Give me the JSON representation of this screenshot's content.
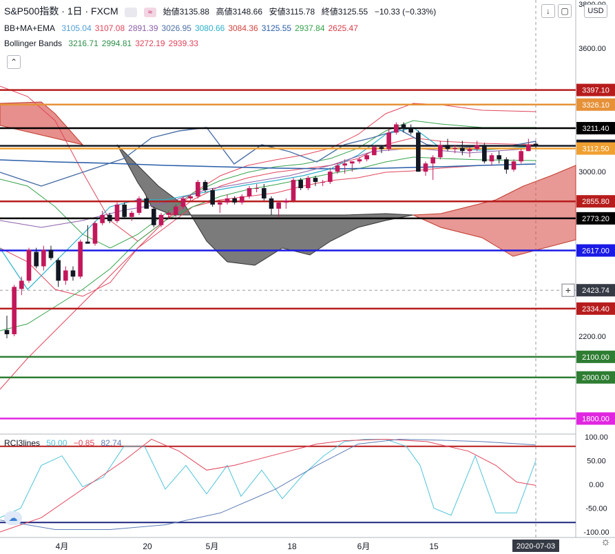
{
  "header": {
    "symbol": "S&P500指数 · 1日 · FXCM",
    "ohlc": {
      "open_label": "始値",
      "open": "3135.88",
      "high_label": "高値",
      "high": "3148.66",
      "low_label": "安値",
      "low": "3115.78",
      "close_label": "終値",
      "close": "3125.55",
      "change": "−10.33 (−0.33%)"
    },
    "indicators": [
      {
        "name": "BB+MA+EMA",
        "values": [
          "3105.04",
          "3107.08",
          "2891.39",
          "3026.95",
          "3080.66",
          "3084.36",
          "3125.55",
          "2937.84",
          "2625.47"
        ],
        "colors": [
          "#4f9fd6",
          "#e0445a",
          "#8b5ea8",
          "#4a6fa5",
          "#2ab0c9",
          "#d0443f",
          "#2a5ea8",
          "#35a24a",
          "#d83a45"
        ]
      },
      {
        "name": "Bollinger Bands",
        "values": [
          "3216.71",
          "2994.81",
          "3272.19",
          "2939.33"
        ],
        "colors": [
          "#2f8f4a",
          "#2f8f4a",
          "#e0445a",
          "#e0445a"
        ]
      }
    ],
    "collapse_icon": "chevron-up-icon",
    "currency": "USD",
    "colors": {
      "up": "#c2185b",
      "down": "#131722"
    }
  },
  "price_axis": {
    "ticks": [
      "3600.00",
      "3400.00",
      "3200.00",
      "3000.00",
      "2800.00",
      "2600.00",
      "2400.00",
      "2200.00",
      "2000.00",
      "1800.00"
    ],
    "ticks_shown": [
      "3600.00",
      "3000.00",
      "2200.00"
    ],
    "top_partial": "3800.00"
  },
  "hlines": [
    {
      "value": 3397.1,
      "label": "3397.10",
      "color": "#b71c1c"
    },
    {
      "value": 3326.1,
      "label": "3326.10",
      "color": "#e69138"
    },
    {
      "value": 3211.4,
      "label": "3211.40",
      "color": "#000000"
    },
    {
      "value": 3125.55,
      "label": "3125.55",
      "color": "#131722"
    },
    {
      "value": 3112.5,
      "label": "3112.50",
      "color": "#f0a030"
    },
    {
      "value": 2855.8,
      "label": "2855.80",
      "color": "#b71c1c"
    },
    {
      "value": 2773.2,
      "label": "2773.20",
      "color": "#000000"
    },
    {
      "value": 2617.0,
      "label": "2617.00",
      "color": "#1a1ae6"
    },
    {
      "value": 2334.4,
      "label": "2334.40",
      "color": "#b71c1c"
    },
    {
      "value": 2100.0,
      "label": "2100.00",
      "color": "#2e7d32"
    },
    {
      "value": 2000.0,
      "label": "2000.00",
      "color": "#2e7d32"
    },
    {
      "value": 1800.0,
      "label": "1800.00",
      "color": "#e026e0"
    }
  ],
  "crosshair": {
    "price": "2423.74",
    "date": "2020-07-03"
  },
  "x_axis": {
    "labels": [
      "4月",
      "20",
      "5月",
      "18",
      "6月",
      "15"
    ]
  },
  "rci": {
    "title": "RCI3lines",
    "values": [
      "50.00",
      "−0.85",
      "82.74"
    ],
    "colors": [
      "#4fc3d9",
      "#e0445a",
      "#5b7bb5"
    ],
    "axis": [
      "100.00",
      "50.00",
      "0.00",
      "-50.00",
      "-100.00"
    ],
    "levels": [
      80,
      -80
    ]
  },
  "chart_data": {
    "type": "candlestick",
    "title": "S&P500指数, 1日, FXCM",
    "ylim": [
      1800,
      3850
    ],
    "dates": [
      "03-23",
      "03-24",
      "03-25",
      "03-26",
      "03-27",
      "03-30",
      "03-31",
      "04-01",
      "04-02",
      "04-03",
      "04-06",
      "04-07",
      "04-08",
      "04-09",
      "04-13",
      "04-14",
      "04-15",
      "04-16",
      "04-17",
      "04-20",
      "04-21",
      "04-22",
      "04-23",
      "04-24",
      "04-27",
      "04-28",
      "04-29",
      "04-30",
      "05-01",
      "05-04",
      "05-05",
      "05-06",
      "05-07",
      "05-08",
      "05-11",
      "05-12",
      "05-13",
      "05-14",
      "05-15",
      "05-18",
      "05-19",
      "05-20",
      "05-21",
      "05-22",
      "05-26",
      "05-27",
      "05-28",
      "05-29",
      "06-01",
      "06-02",
      "06-03",
      "06-04",
      "06-05",
      "06-08",
      "06-09",
      "06-10",
      "06-11",
      "06-12",
      "06-15",
      "06-16",
      "06-17",
      "06-18",
      "06-19",
      "06-22",
      "06-23",
      "06-24",
      "06-25",
      "06-26",
      "06-29",
      "06-30",
      "07-01",
      "07-02",
      "07-03"
    ],
    "ohlc": [
      [
        2230,
        2300,
        2190,
        2210
      ],
      [
        2210,
        2450,
        2200,
        2440
      ],
      [
        2430,
        2490,
        2400,
        2470
      ],
      [
        2470,
        2630,
        2460,
        2620
      ],
      [
        2610,
        2630,
        2530,
        2540
      ],
      [
        2540,
        2640,
        2520,
        2620
      ],
      [
        2620,
        2640,
        2570,
        2580
      ],
      [
        2570,
        2580,
        2440,
        2470
      ],
      [
        2470,
        2540,
        2450,
        2520
      ],
      [
        2520,
        2540,
        2470,
        2490
      ],
      [
        2490,
        2670,
        2480,
        2660
      ],
      [
        2660,
        2740,
        2650,
        2650
      ],
      [
        2650,
        2760,
        2640,
        2750
      ],
      [
        2750,
        2810,
        2740,
        2790
      ],
      [
        2790,
        2800,
        2750,
        2760
      ],
      [
        2760,
        2850,
        2750,
        2840
      ],
      [
        2840,
        2850,
        2770,
        2780
      ],
      [
        2780,
        2810,
        2760,
        2800
      ],
      [
        2800,
        2880,
        2790,
        2870
      ],
      [
        2870,
        2880,
        2820,
        2820
      ],
      [
        2820,
        2830,
        2730,
        2740
      ],
      [
        2740,
        2800,
        2730,
        2790
      ],
      [
        2790,
        2810,
        2770,
        2800
      ],
      [
        2790,
        2840,
        2780,
        2830
      ],
      [
        2830,
        2880,
        2820,
        2870
      ],
      [
        2870,
        2890,
        2860,
        2880
      ],
      [
        2880,
        2960,
        2870,
        2950
      ],
      [
        2950,
        2960,
        2900,
        2910
      ],
      [
        2910,
        2920,
        2830,
        2840
      ],
      [
        2840,
        2860,
        2800,
        2850
      ],
      [
        2850,
        2890,
        2840,
        2870
      ],
      [
        2870,
        2880,
        2840,
        2850
      ],
      [
        2850,
        2890,
        2840,
        2880
      ],
      [
        2880,
        2930,
        2870,
        2920
      ],
      [
        2920,
        2940,
        2900,
        2920
      ],
      [
        2920,
        2940,
        2860,
        2870
      ],
      [
        2870,
        2880,
        2790,
        2820
      ],
      [
        2820,
        2860,
        2780,
        2850
      ],
      [
        2850,
        2870,
        2820,
        2860
      ],
      [
        2860,
        2970,
        2850,
        2960
      ],
      [
        2960,
        2970,
        2910,
        2920
      ],
      [
        2920,
        2980,
        2910,
        2970
      ],
      [
        2970,
        2980,
        2930,
        2950
      ],
      [
        2950,
        2960,
        2930,
        2950
      ],
      [
        2950,
        3020,
        2940,
        3000
      ],
      [
        3000,
        3040,
        2990,
        3030
      ],
      [
        3030,
        3060,
        2990,
        3040
      ],
      [
        3040,
        3050,
        3000,
        3050
      ],
      [
        3050,
        3070,
        3040,
        3060
      ],
      [
        3060,
        3090,
        3050,
        3080
      ],
      [
        3080,
        3130,
        3080,
        3120
      ],
      [
        3120,
        3130,
        3090,
        3110
      ],
      [
        3110,
        3210,
        3100,
        3190
      ],
      [
        3190,
        3240,
        3180,
        3230
      ],
      [
        3230,
        3240,
        3190,
        3210
      ],
      [
        3210,
        3230,
        3180,
        3190
      ],
      [
        3190,
        3200,
        3000,
        3000
      ],
      [
        3000,
        3050,
        2980,
        3040
      ],
      [
        3040,
        3080,
        2960,
        3070
      ],
      [
        3070,
        3150,
        3060,
        3130
      ],
      [
        3130,
        3160,
        3100,
        3110
      ],
      [
        3110,
        3130,
        3090,
        3115
      ],
      [
        3115,
        3150,
        3080,
        3100
      ],
      [
        3100,
        3120,
        3070,
        3110
      ],
      [
        3110,
        3150,
        3100,
        3130
      ],
      [
        3130,
        3140,
        3040,
        3050
      ],
      [
        3050,
        3090,
        3030,
        3080
      ],
      [
        3080,
        3100,
        3040,
        3060
      ],
      [
        3060,
        3070,
        2990,
        3010
      ],
      [
        3010,
        3060,
        3000,
        3050
      ],
      [
        3050,
        3110,
        3040,
        3100
      ],
      [
        3100,
        3160,
        3100,
        3130
      ],
      [
        3135.88,
        3148.66,
        3115.78,
        3125.55
      ]
    ]
  }
}
